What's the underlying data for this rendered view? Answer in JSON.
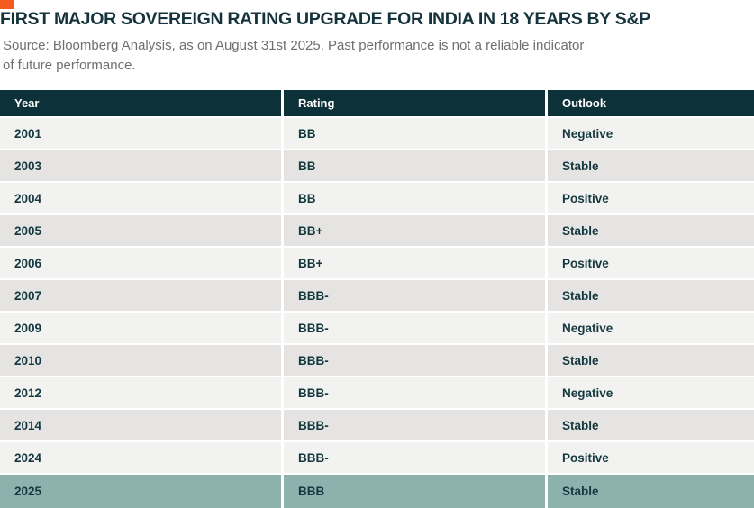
{
  "header": {
    "title": "FIRST MAJOR SOVEREIGN RATING UPGRADE FOR INDIA IN 18 YEARS BY S&P",
    "source_line1": "Source: Bloomberg Analysis, as on August 31st 2025. Past performance is not a reliable indicator",
    "source_line2": "of future performance."
  },
  "colors": {
    "accent_orange": "#F4591D",
    "header_teal": "#0D3138",
    "title_teal": "#15333C",
    "cell_teal": "#14383F",
    "highlight_sage": "#8DB1AD",
    "row_light": "#F2F2F0",
    "row_alt": "#E5E4E2",
    "source_gray": "#6E6E6E"
  },
  "chart_data": {
    "type": "table",
    "title": "FIRST MAJOR SOVEREIGN RATING UPGRADE FOR INDIA IN 18 YEARS BY S&P",
    "columns": [
      "Year",
      "Rating",
      "Outlook"
    ],
    "rows": [
      [
        "2001",
        "BB",
        "Negative"
      ],
      [
        "2003",
        "BB",
        "Stable"
      ],
      [
        "2004",
        "BB",
        "Positive"
      ],
      [
        "2005",
        "BB+",
        "Stable"
      ],
      [
        "2006",
        "BB+",
        "Positive"
      ],
      [
        "2007",
        "BBB-",
        "Stable"
      ],
      [
        "2009",
        "BBB-",
        "Negative"
      ],
      [
        "2010",
        "BBB-",
        "Stable"
      ],
      [
        "2012",
        "BBB-",
        "Negative"
      ],
      [
        "2014",
        "BBB-",
        "Stable"
      ],
      [
        "2024",
        "BBB-",
        "Positive"
      ],
      [
        "2025",
        "BBB",
        "Stable"
      ]
    ],
    "highlighted_row_index": 11,
    "layout": {
      "legend": "none",
      "grid": "row-separators-white",
      "alternating_rows": true
    }
  }
}
